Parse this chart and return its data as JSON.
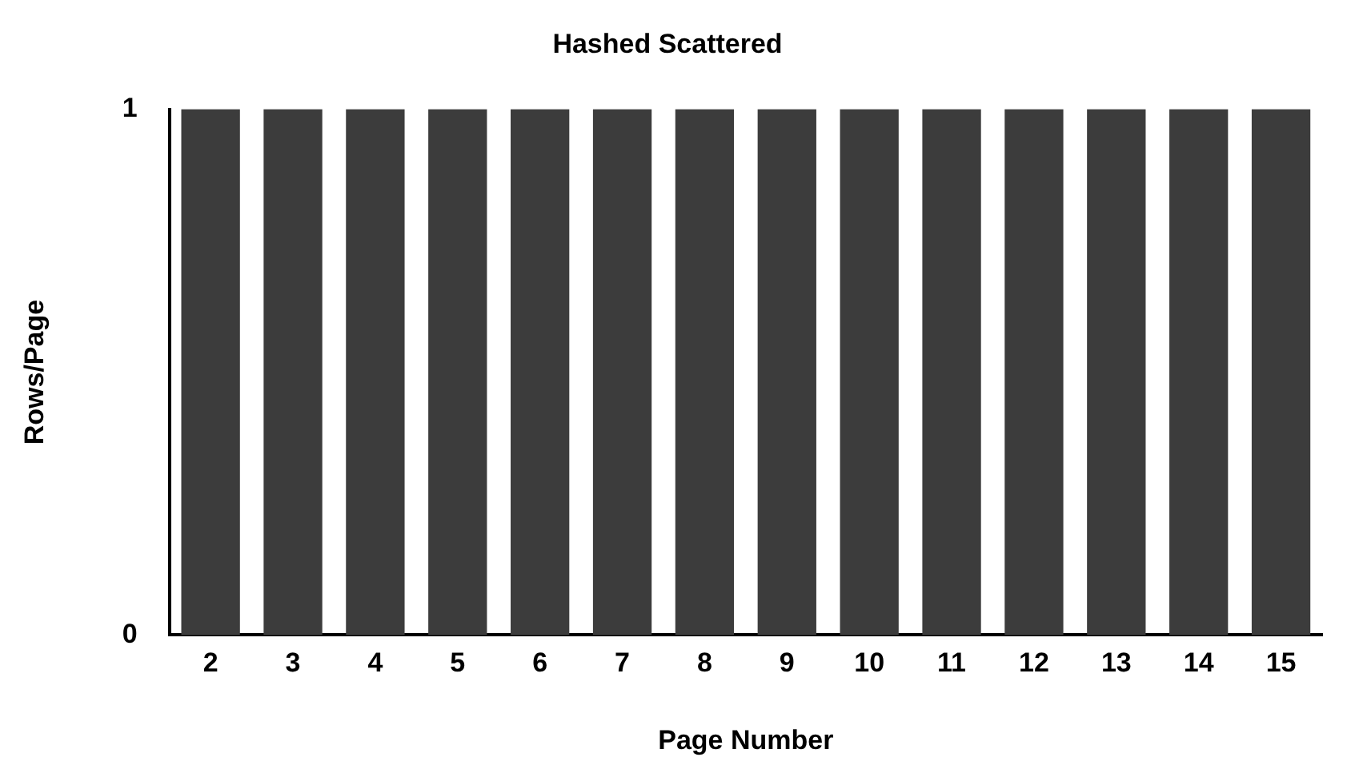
{
  "chart_data": {
    "type": "bar",
    "title": "Hashed Scattered",
    "xlabel": "Page Number",
    "ylabel": "Rows/Page",
    "categories": [
      "2",
      "3",
      "4",
      "5",
      "6",
      "7",
      "8",
      "9",
      "10",
      "11",
      "12",
      "13",
      "14",
      "15"
    ],
    "values": [
      1,
      1,
      1,
      1,
      1,
      1,
      1,
      1,
      1,
      1,
      1,
      1,
      1,
      1
    ],
    "color": "#3c3c3c",
    "ylim": [
      0,
      1
    ],
    "yticks": [
      0,
      1
    ],
    "grid": false,
    "legend": false
  }
}
